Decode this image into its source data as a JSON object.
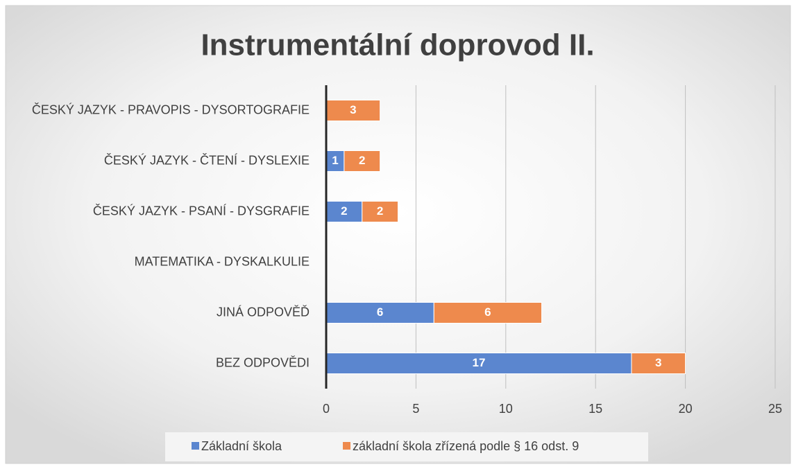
{
  "chart_data": {
    "type": "stacked-bar-horizontal",
    "title": "Instrumentální doprovod II.",
    "categories": [
      "ČESKÝ JAZYK - PRAVOPIS - DYSORTOGRAFIE",
      "ČESKÝ JAZYK - ČTENÍ - DYSLEXIE",
      "ČESKÝ JAZYK - PSANÍ - DYSGRAFIE",
      "MATEMATIKA - DYSKALKULIE",
      "JINÁ ODPOVĚĎ",
      "BEZ ODPOVĚDI"
    ],
    "series": [
      {
        "name": "Základní škola",
        "color": "#5b86cf",
        "values": [
          0,
          1,
          2,
          0,
          6,
          17
        ]
      },
      {
        "name": "základní škola zřízená podle § 16 odst. 9",
        "color": "#ee8a4d",
        "values": [
          3,
          2,
          2,
          0,
          6,
          3
        ]
      }
    ],
    "xlim": [
      0,
      25
    ],
    "xticks": [
      0,
      5,
      10,
      15,
      20,
      25
    ],
    "grid": true,
    "legend": "bottom"
  }
}
